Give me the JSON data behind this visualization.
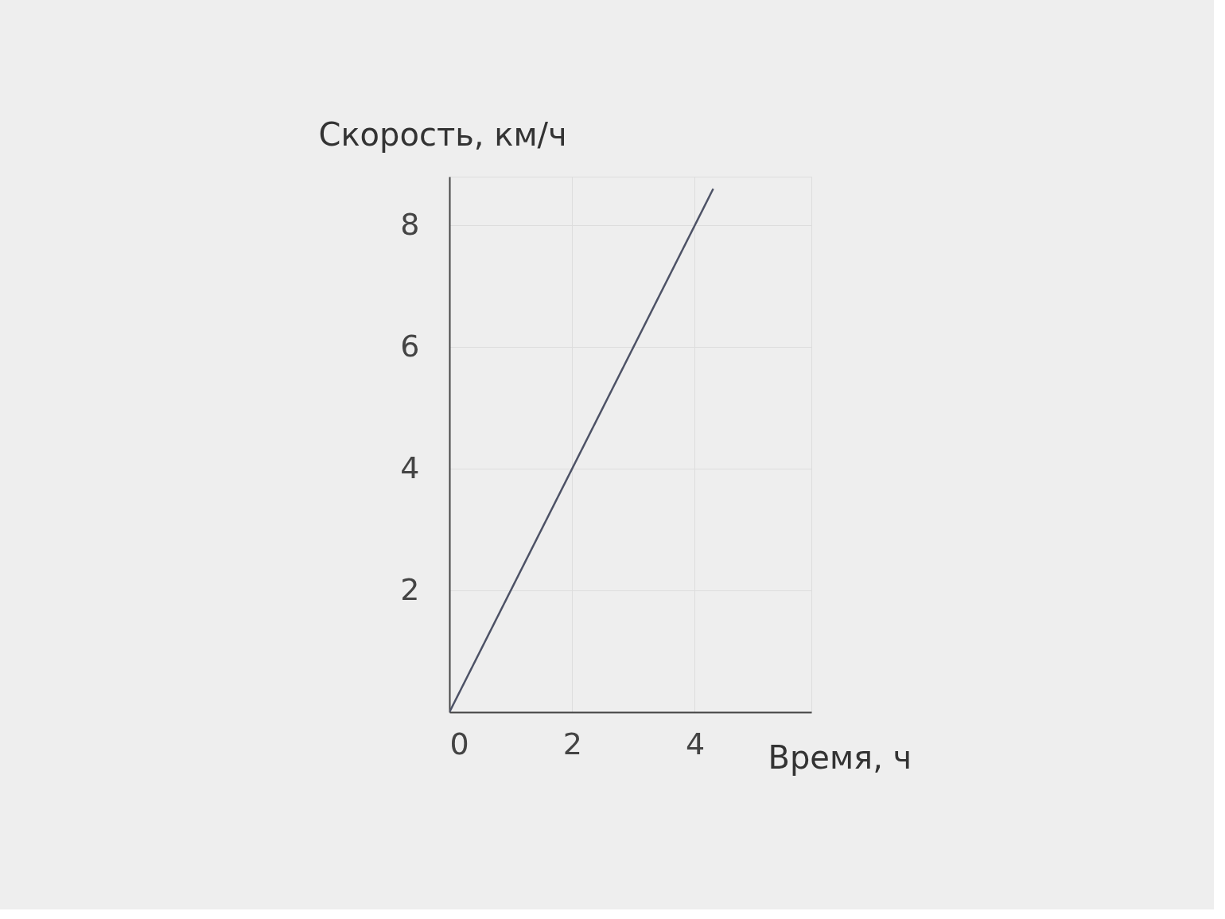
{
  "chart_data": {
    "type": "line",
    "xlabel": "Время, ч",
    "ylabel": "Скорость, км/ч",
    "x": [
      0,
      4.3
    ],
    "series": [
      {
        "color": "#4d5266",
        "values": [
          0,
          8.6
        ]
      }
    ],
    "xlim": [
      0,
      5.9
    ],
    "ylim": [
      0,
      8.8
    ],
    "xticks": [
      0,
      2,
      4
    ],
    "yticks": [
      2,
      4,
      6,
      8
    ],
    "grid": true,
    "legend": false,
    "marker": "none",
    "line_style": "solid"
  }
}
